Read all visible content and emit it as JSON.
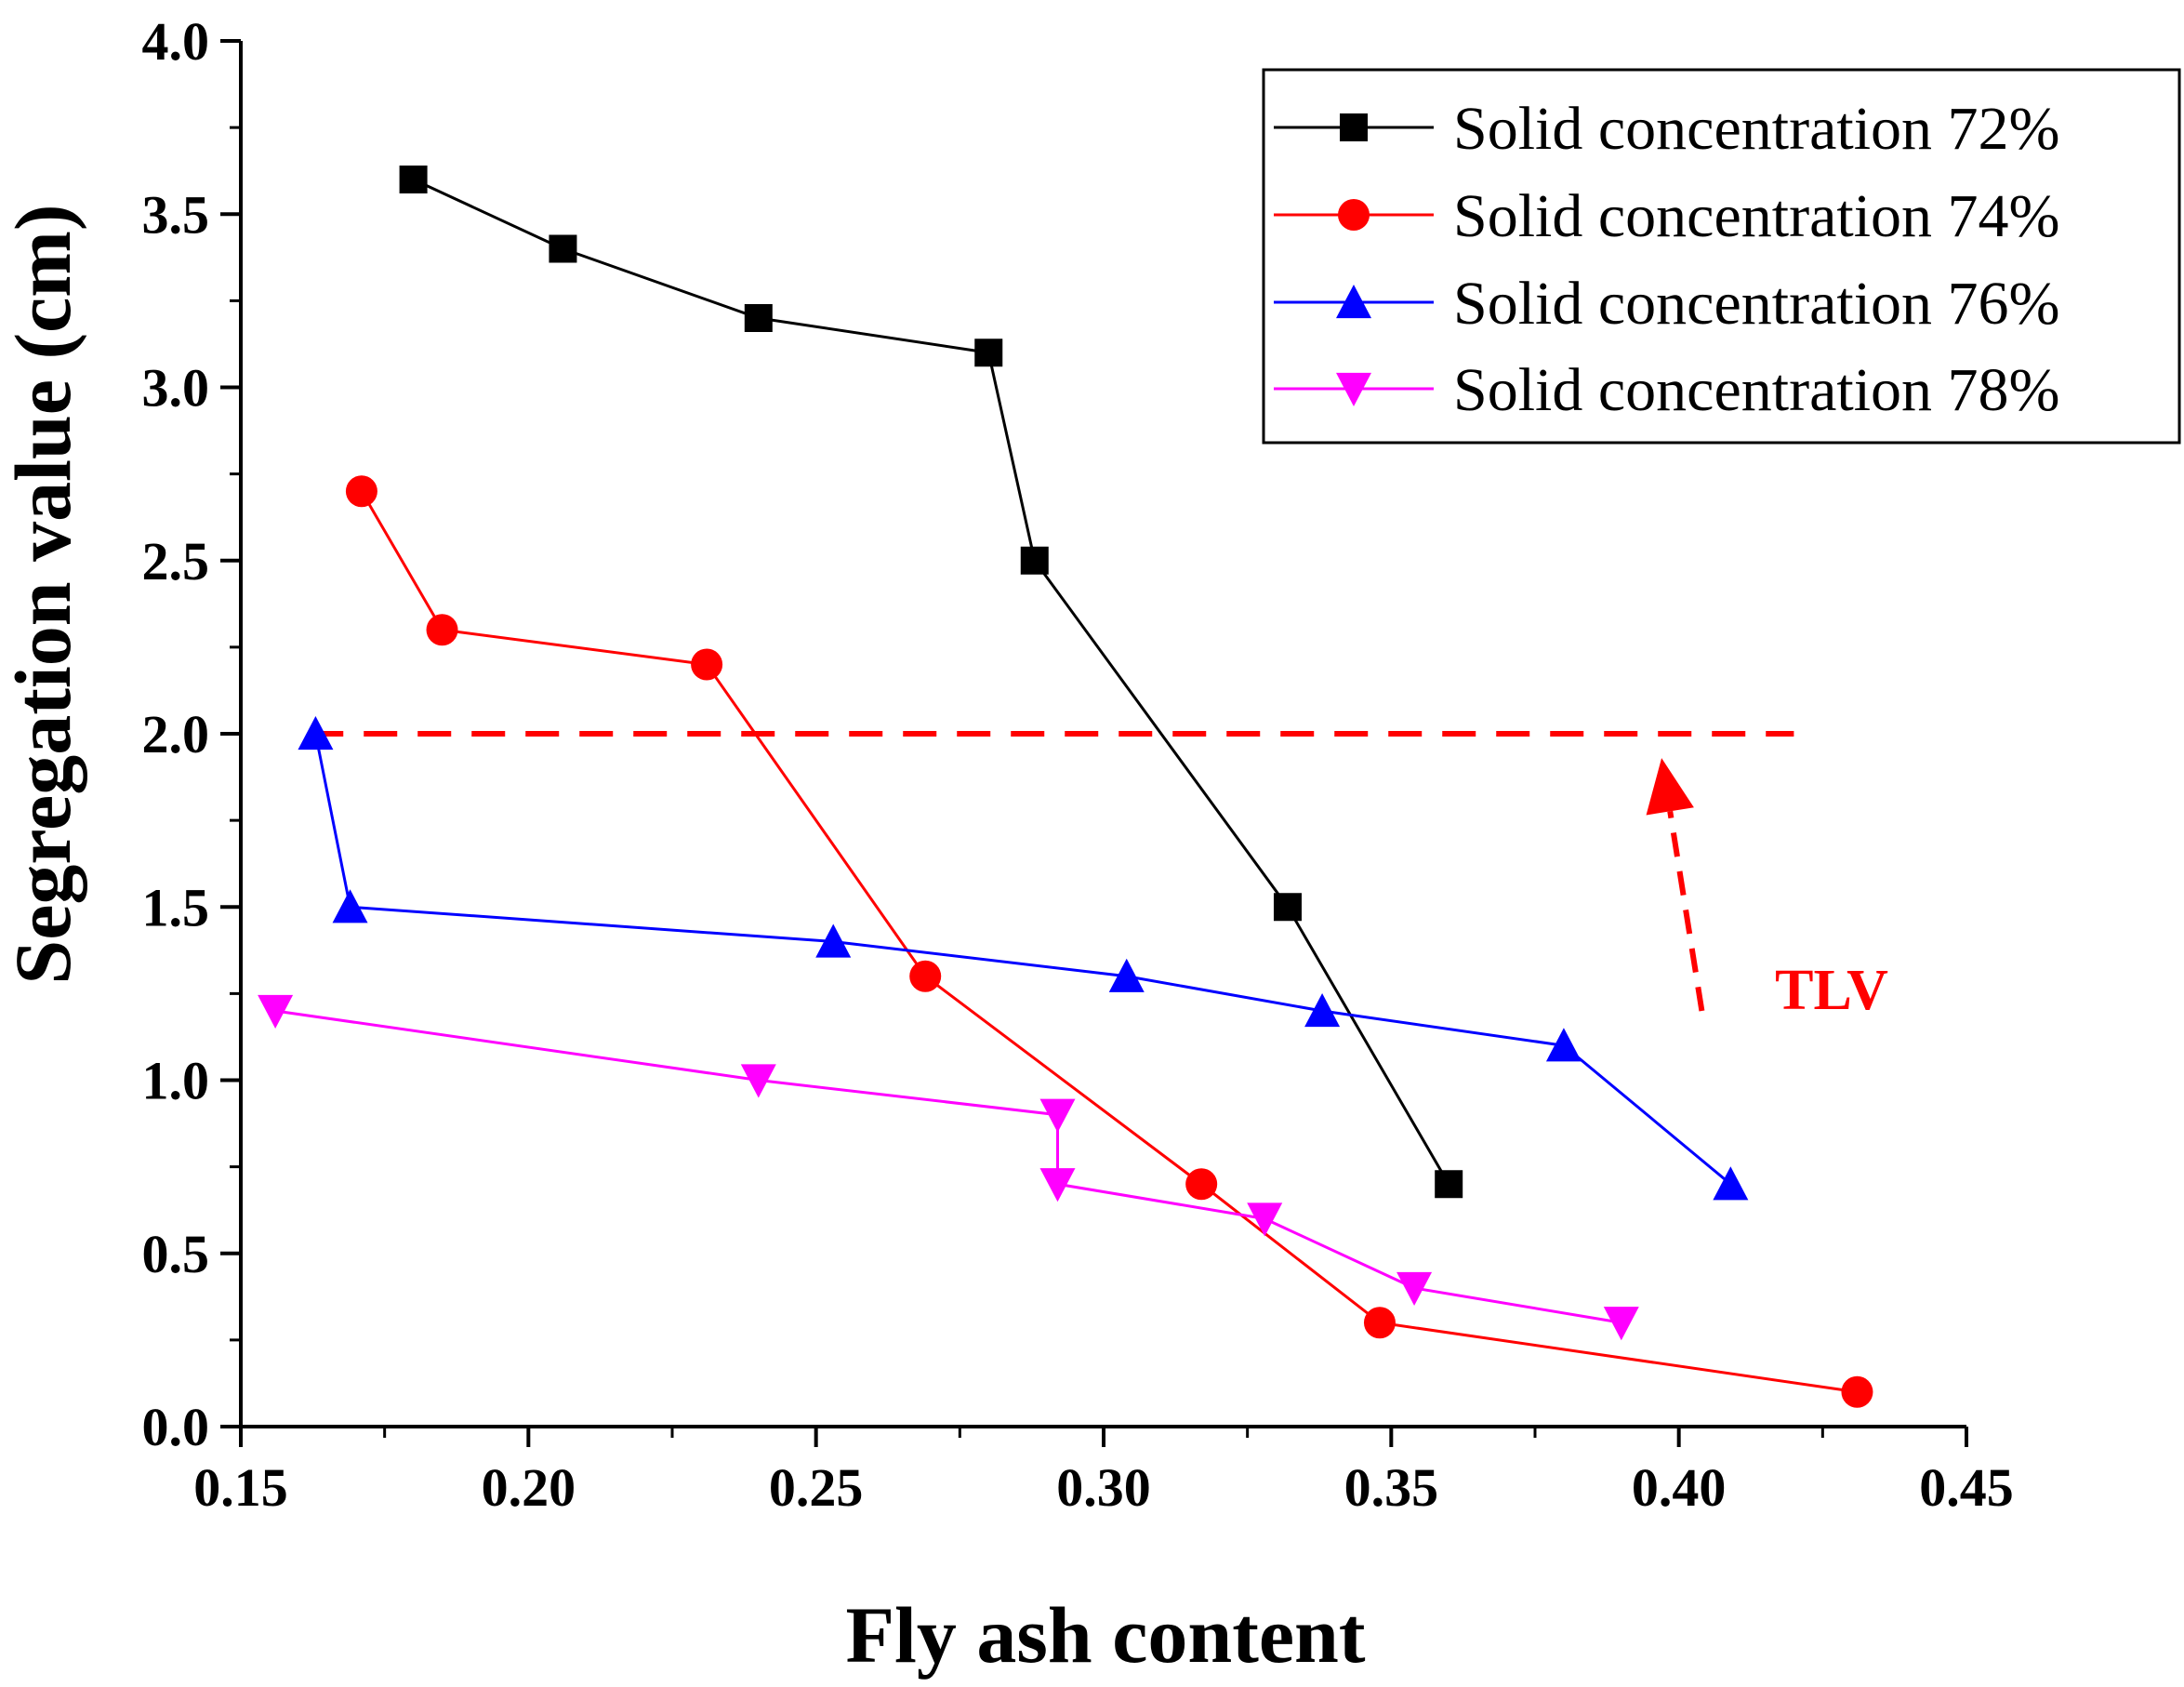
{
  "chart_data": {
    "type": "line",
    "title": "",
    "xlabel": "Fly ash content",
    "ylabel": "Segregation value (cm)",
    "xlim": [
      0.15,
      0.45
    ],
    "ylim": [
      0.0,
      4.0
    ],
    "xticks": [
      "0.15",
      "0.20",
      "0.25",
      "0.30",
      "0.35",
      "0.40",
      "0.45"
    ],
    "yticks": [
      "0.0",
      "0.5",
      "1.0",
      "1.5",
      "2.0",
      "2.5",
      "3.0",
      "3.5",
      "4.0"
    ],
    "legend_position": "top-right",
    "series": [
      {
        "name": "Solid concentration 72%",
        "color": "#000000",
        "marker": "square",
        "x": [
          0.18,
          0.206,
          0.24,
          0.28,
          0.288,
          0.332,
          0.36
        ],
        "y": [
          3.6,
          3.4,
          3.2,
          3.1,
          2.5,
          1.5,
          0.7
        ]
      },
      {
        "name": "Solid concentration 74%",
        "color": "#ff0000",
        "marker": "circle",
        "x": [
          0.171,
          0.185,
          0.231,
          0.269,
          0.317,
          0.348,
          0.431
        ],
        "y": [
          2.7,
          2.3,
          2.2,
          1.3,
          0.7,
          0.3,
          0.1
        ]
      },
      {
        "name": "Solid concentration 76%",
        "color": "#0000ff",
        "marker": "triangle-up",
        "x": [
          0.163,
          0.169,
          0.253,
          0.304,
          0.338,
          0.38,
          0.409
        ],
        "y": [
          2.0,
          1.5,
          1.4,
          1.3,
          1.2,
          1.1,
          0.7
        ]
      },
      {
        "name": "Solid concentration 78%",
        "color": "#ff00ff",
        "marker": "triangle-down",
        "x": [
          0.156,
          0.24,
          0.292,
          0.292,
          0.328,
          0.354,
          0.39
        ],
        "y": [
          1.2,
          1.0,
          0.9,
          0.7,
          0.6,
          0.4,
          0.3
        ]
      }
    ],
    "reference_line": {
      "y": 2.0,
      "x_from": 0.162,
      "x_to": 0.42,
      "color": "#ff0000",
      "style": "dashed"
    },
    "annotation": {
      "text": "TLV",
      "color": "#ff0000",
      "arrow_from": [
        0.404,
        1.2
      ],
      "arrow_to": [
        0.397,
        1.93
      ]
    }
  }
}
